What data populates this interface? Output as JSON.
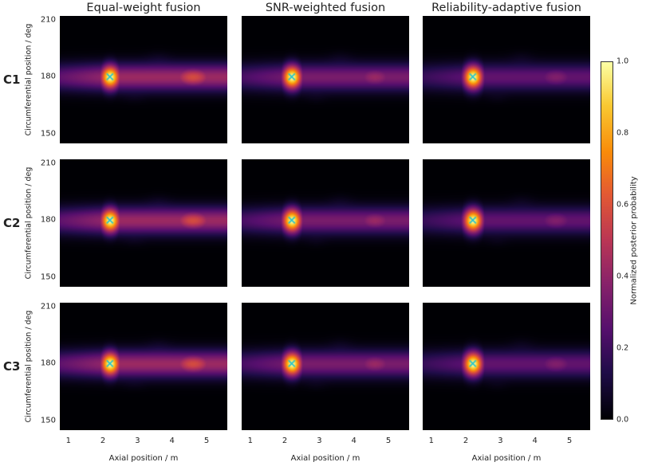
{
  "chart_data": {
    "type": "heatmap",
    "columns": [
      "Equal-weight fusion",
      "SNR-weighted fusion",
      "Reliability-adaptive fusion"
    ],
    "rows": [
      "C1",
      "C2",
      "C3"
    ],
    "xlabel": "Axial position / m",
    "ylabel": "Circumferential position / deg",
    "xlim": [
      0.75,
      5.6
    ],
    "ylim": [
      145,
      212
    ],
    "xticks": [
      "1",
      "2",
      "3",
      "4",
      "5"
    ],
    "xtick_values": [
      1,
      2,
      3,
      4,
      5
    ],
    "yticks": [
      "150",
      "180",
      "210"
    ],
    "ytick_values": [
      150,
      180,
      210
    ],
    "colorbar": {
      "label": "Normalized posterior probability",
      "range": [
        0,
        1
      ],
      "ticks": [
        "0.0",
        "0.2",
        "0.4",
        "0.6",
        "0.8",
        "1.0"
      ],
      "tick_values": [
        0.0,
        0.2,
        0.4,
        0.6,
        0.8,
        1.0
      ],
      "colormap": "inferno"
    },
    "true_location": {
      "x": 2.2,
      "y": 180,
      "color": "#2ec4c8"
    },
    "peak": {
      "x": 2.2,
      "y": 180,
      "value": 1.0
    },
    "secondary_lobe": {
      "x": 4.6,
      "y": 180,
      "value_by_column": [
        0.58,
        0.42,
        0.36
      ]
    },
    "band_intensity_by_column": [
      0.5,
      0.4,
      0.33
    ]
  }
}
